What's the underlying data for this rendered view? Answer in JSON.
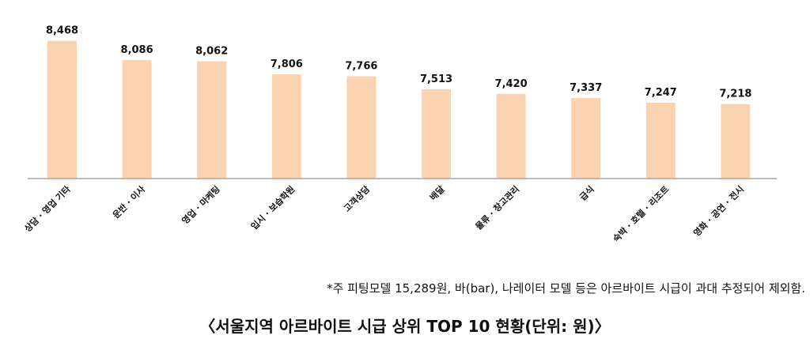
{
  "chart_data": {
    "type": "bar",
    "categories": [
      "상담 · 영업 기타",
      "운반 · 이사",
      "영업 · 마케팅",
      "입시 · 보습학원",
      "고객상담",
      "배달",
      "물류 · 창고관리",
      "급식",
      "숙박 · 호텔 · 리조트",
      "영화 · 공연 · 전시"
    ],
    "values": [
      8468,
      8086,
      8062,
      7806,
      7766,
      7513,
      7420,
      7337,
      7247,
      7218
    ],
    "value_labels": [
      "8,468",
      "8,086",
      "8,062",
      "7,806",
      "7,766",
      "7,513",
      "7,420",
      "7,337",
      "7,247",
      "7,218"
    ],
    "title": "〈서울지역 아르바이트 시급 상위 TOP 10 현황(단위: 원)〉",
    "xlabel": "",
    "ylabel": "",
    "ylim": [
      5750,
      8600
    ],
    "grid": false,
    "legend": "none",
    "bar_color": "#FAD4B0",
    "axis_color": "#A6A6A6"
  },
  "footnote": "*주 피팅모델 15,289원, 바(bar), 나레이터 모델 등은 아르바이트 시급이 과대 추정되어 제외함."
}
